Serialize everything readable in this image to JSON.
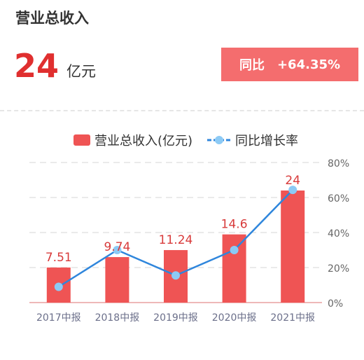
{
  "header": {
    "title": "营业总收入",
    "value": "24",
    "unit": "亿元",
    "badge_label": "同比",
    "badge_value": "+64.35%"
  },
  "chart_data": {
    "type": "bar",
    "categories": [
      "2017中报",
      "2018中报",
      "2019中报",
      "2020中报",
      "2021中报"
    ],
    "series": [
      {
        "name": "营业总收入(亿元)",
        "type": "bar",
        "axis": "left",
        "values": [
          7.51,
          9.74,
          11.24,
          14.6,
          24
        ],
        "labels": [
          "7.51",
          "9.74",
          "11.24",
          "14.6",
          "24"
        ]
      },
      {
        "name": "同比增长率",
        "type": "line",
        "axis": "right",
        "values": [
          9,
          30,
          15.5,
          30,
          64.35
        ]
      }
    ],
    "y_left_range": [
      0,
      30
    ],
    "y_right_ticks": [
      "0%",
      "20%",
      "40%",
      "60%",
      "80%"
    ],
    "y_right_range": [
      0,
      80
    ],
    "grid": true,
    "legend": "top",
    "colors": {
      "bar": "#ef5454",
      "line": "#2f86dc",
      "marker": "#8ccaf5"
    }
  }
}
